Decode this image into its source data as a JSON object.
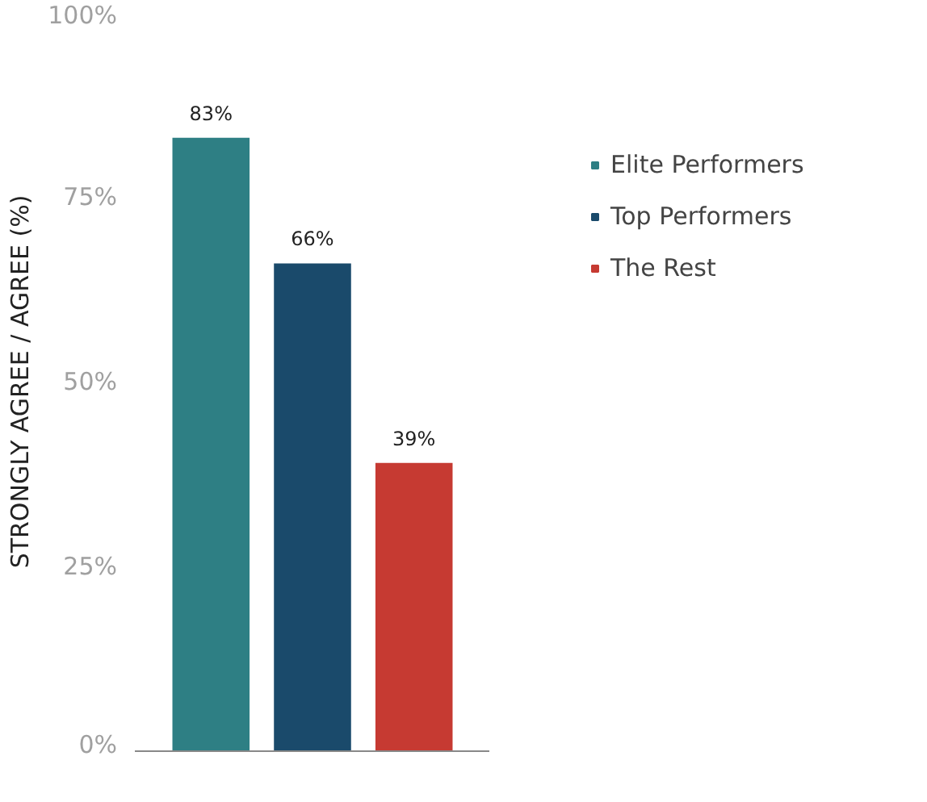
{
  "chart_data": {
    "type": "bar",
    "ylabel": "STRONGLY AGREE / AGREE (%)",
    "categories": [
      null
    ],
    "series": [
      {
        "name": "Elite Performers",
        "color": "#2e7f84",
        "values": [
          83
        ],
        "value_labels": [
          "83%"
        ]
      },
      {
        "name": "Top Performers",
        "color": "#1a4a6b",
        "values": [
          66
        ],
        "value_labels": [
          "66%"
        ]
      },
      {
        "name": "The Rest",
        "color": "#c63a32",
        "values": [
          39
        ],
        "value_labels": [
          "39%"
        ]
      }
    ],
    "ylim": [
      0,
      100
    ],
    "yticks": [
      {
        "value": 0,
        "label": "0%"
      },
      {
        "value": 25,
        "label": "25%"
      },
      {
        "value": 50,
        "label": "50%"
      },
      {
        "value": 75,
        "label": "75%"
      },
      {
        "value": 100,
        "label": "100%"
      }
    ],
    "tick_labels": "y",
    "legend": "right"
  }
}
